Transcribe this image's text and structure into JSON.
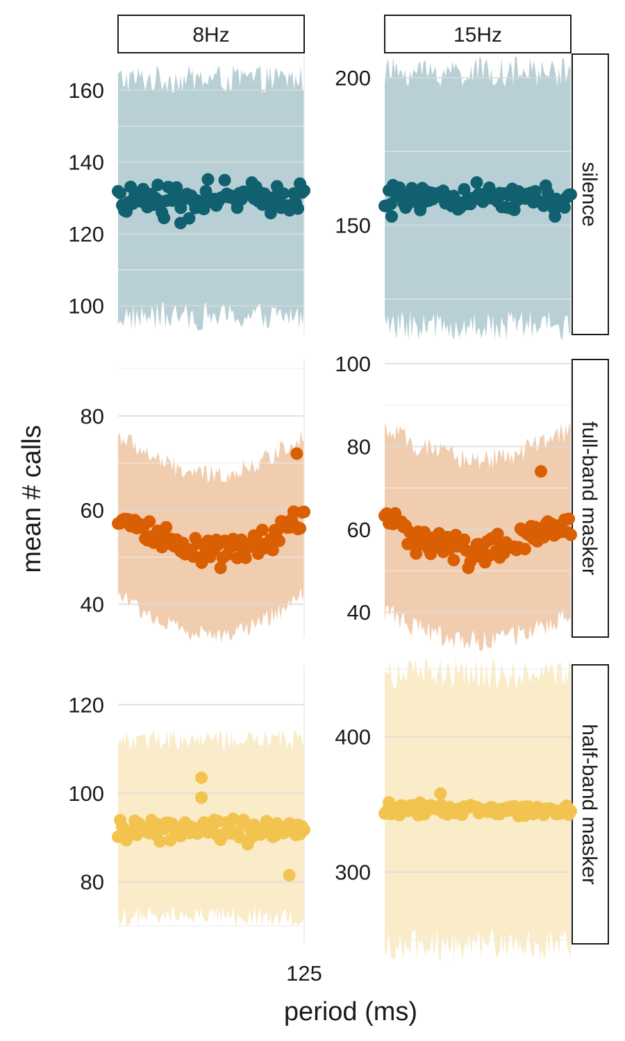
{
  "chart_data": {
    "type": "scatter",
    "xlabel": "period (ms)",
    "ylabel": "mean # calls",
    "x_tick_labels": [
      "125"
    ],
    "col_facets": [
      "8Hz",
      "15Hz"
    ],
    "row_facets": [
      "silence",
      "full-band masker",
      "half-band masker"
    ],
    "row_colors": {
      "silence": "#10606f",
      "full-band masker": "#d95f02",
      "half-band masker": "#f2c44f"
    },
    "ribbon_colors": {
      "silence": "#b8d0d5",
      "full-band masker": "#f1cdb0",
      "half-band masker": "#faecc8"
    },
    "grid": "on",
    "panels": [
      {
        "row": "silence",
        "col": "8Hz",
        "x": [
          0,
          125
        ],
        "ylim": [
          92,
          170
        ],
        "major_y_ticks": [
          100,
          120,
          140,
          160
        ],
        "minor_y_ticks": [
          110,
          130,
          150
        ],
        "y_tick_labels": [
          "100",
          "120",
          "140",
          "160"
        ],
        "mean_level": 130,
        "mean_amplitude": 0,
        "point_noise": 3,
        "band_half_width": 33,
        "outliers": [
          {
            "x": 42,
            "y": 123
          }
        ]
      },
      {
        "row": "silence",
        "col": "15Hz",
        "x": [
          0,
          66.7
        ],
        "ylim": [
          113,
          208
        ],
        "major_y_ticks": [
          150,
          200
        ],
        "minor_y_ticks": [
          125,
          175
        ],
        "y_tick_labels": [
          "150",
          "200"
        ],
        "mean_level": 159,
        "mean_amplitude": 0,
        "point_noise": 3,
        "band_half_width": 43,
        "outliers": [
          {
            "x": 2.5,
            "y": 153
          },
          {
            "x": 61,
            "y": 153
          }
        ]
      },
      {
        "row": "full-band masker",
        "col": "8Hz",
        "x": [
          0,
          125
        ],
        "ylim": [
          33,
          92
        ],
        "major_y_ticks": [
          40,
          60,
          80
        ],
        "minor_y_ticks": [
          50,
          70,
          90
        ],
        "y_tick_labels": [
          "40",
          "60",
          "80"
        ],
        "mean_level": 59,
        "mean_amplitude": 8.5,
        "point_noise": 2.2,
        "band_half_width": 17,
        "outliers": [
          {
            "x": 120,
            "y": 72
          }
        ]
      },
      {
        "row": "full-band masker",
        "col": "15Hz",
        "x": [
          0,
          66.7
        ],
        "ylim": [
          34,
          101
        ],
        "major_y_ticks": [
          40,
          60,
          80,
          100
        ],
        "minor_y_ticks": [
          50,
          70,
          90
        ],
        "y_tick_labels": [
          "40",
          "60",
          "80",
          "100"
        ],
        "mean_level": 62,
        "mean_amplitude": 7,
        "point_noise": 2.5,
        "band_half_width": 22,
        "outliers": [
          {
            "x": 56,
            "y": 74
          }
        ]
      },
      {
        "row": "half-band masker",
        "col": "8Hz",
        "x": [
          0,
          125
        ],
        "ylim": [
          66,
          129
        ],
        "major_y_ticks": [
          80,
          100,
          120
        ],
        "minor_y_ticks": [
          70,
          90,
          110
        ],
        "y_tick_labels": [
          "80",
          "100",
          "120"
        ],
        "mean_level": 92,
        "mean_amplitude": 0,
        "point_noise": 2,
        "band_half_width": 20,
        "outliers": [
          {
            "x": 56,
            "y": 103.5
          },
          {
            "x": 115,
            "y": 81.5
          },
          {
            "x": 56,
            "y": 99
          }
        ]
      },
      {
        "row": "half-band masker",
        "col": "15Hz",
        "x": [
          0,
          66.7
        ],
        "ylim": [
          247,
          453
        ],
        "major_y_ticks": [
          300,
          400
        ],
        "minor_y_ticks": [
          250,
          350,
          450
        ],
        "y_tick_labels": [
          "300",
          "400"
        ],
        "mean_level": 346,
        "mean_amplitude": 0,
        "point_noise": 3,
        "band_half_width": 100,
        "outliers": [
          {
            "x": 20,
            "y": 358
          }
        ]
      }
    ]
  }
}
